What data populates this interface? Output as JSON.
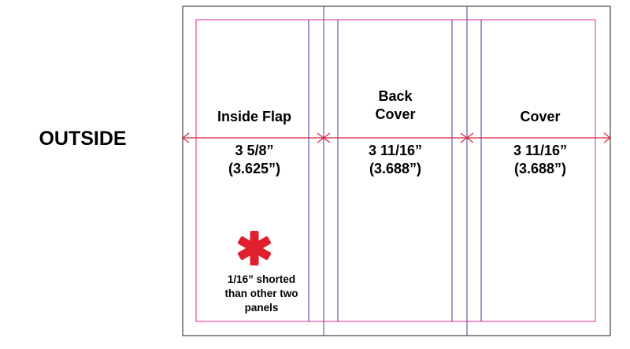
{
  "side_label": "OUTSIDE",
  "colors": {
    "outer_border": "#444444",
    "trim": "#e0288c",
    "fold_guides": "#3a3ab0",
    "dimension_arrows": "#d7263d",
    "asterisk": "#e0202e"
  },
  "panels": [
    {
      "title_lines": [
        "Inside Flap"
      ],
      "measurement": "3 5/8”",
      "decimal": "(3.625”)"
    },
    {
      "title_lines": [
        "Back",
        "Cover"
      ],
      "measurement": "3 11/16”",
      "decimal": "(3.688”)"
    },
    {
      "title_lines": [
        "Cover"
      ],
      "measurement": "3 11/16”",
      "decimal": "(3.688”)"
    }
  ],
  "note": {
    "symbol_icon": "asterisk-icon",
    "lines": [
      "1/16” shorted",
      "than other two",
      "panels"
    ]
  }
}
